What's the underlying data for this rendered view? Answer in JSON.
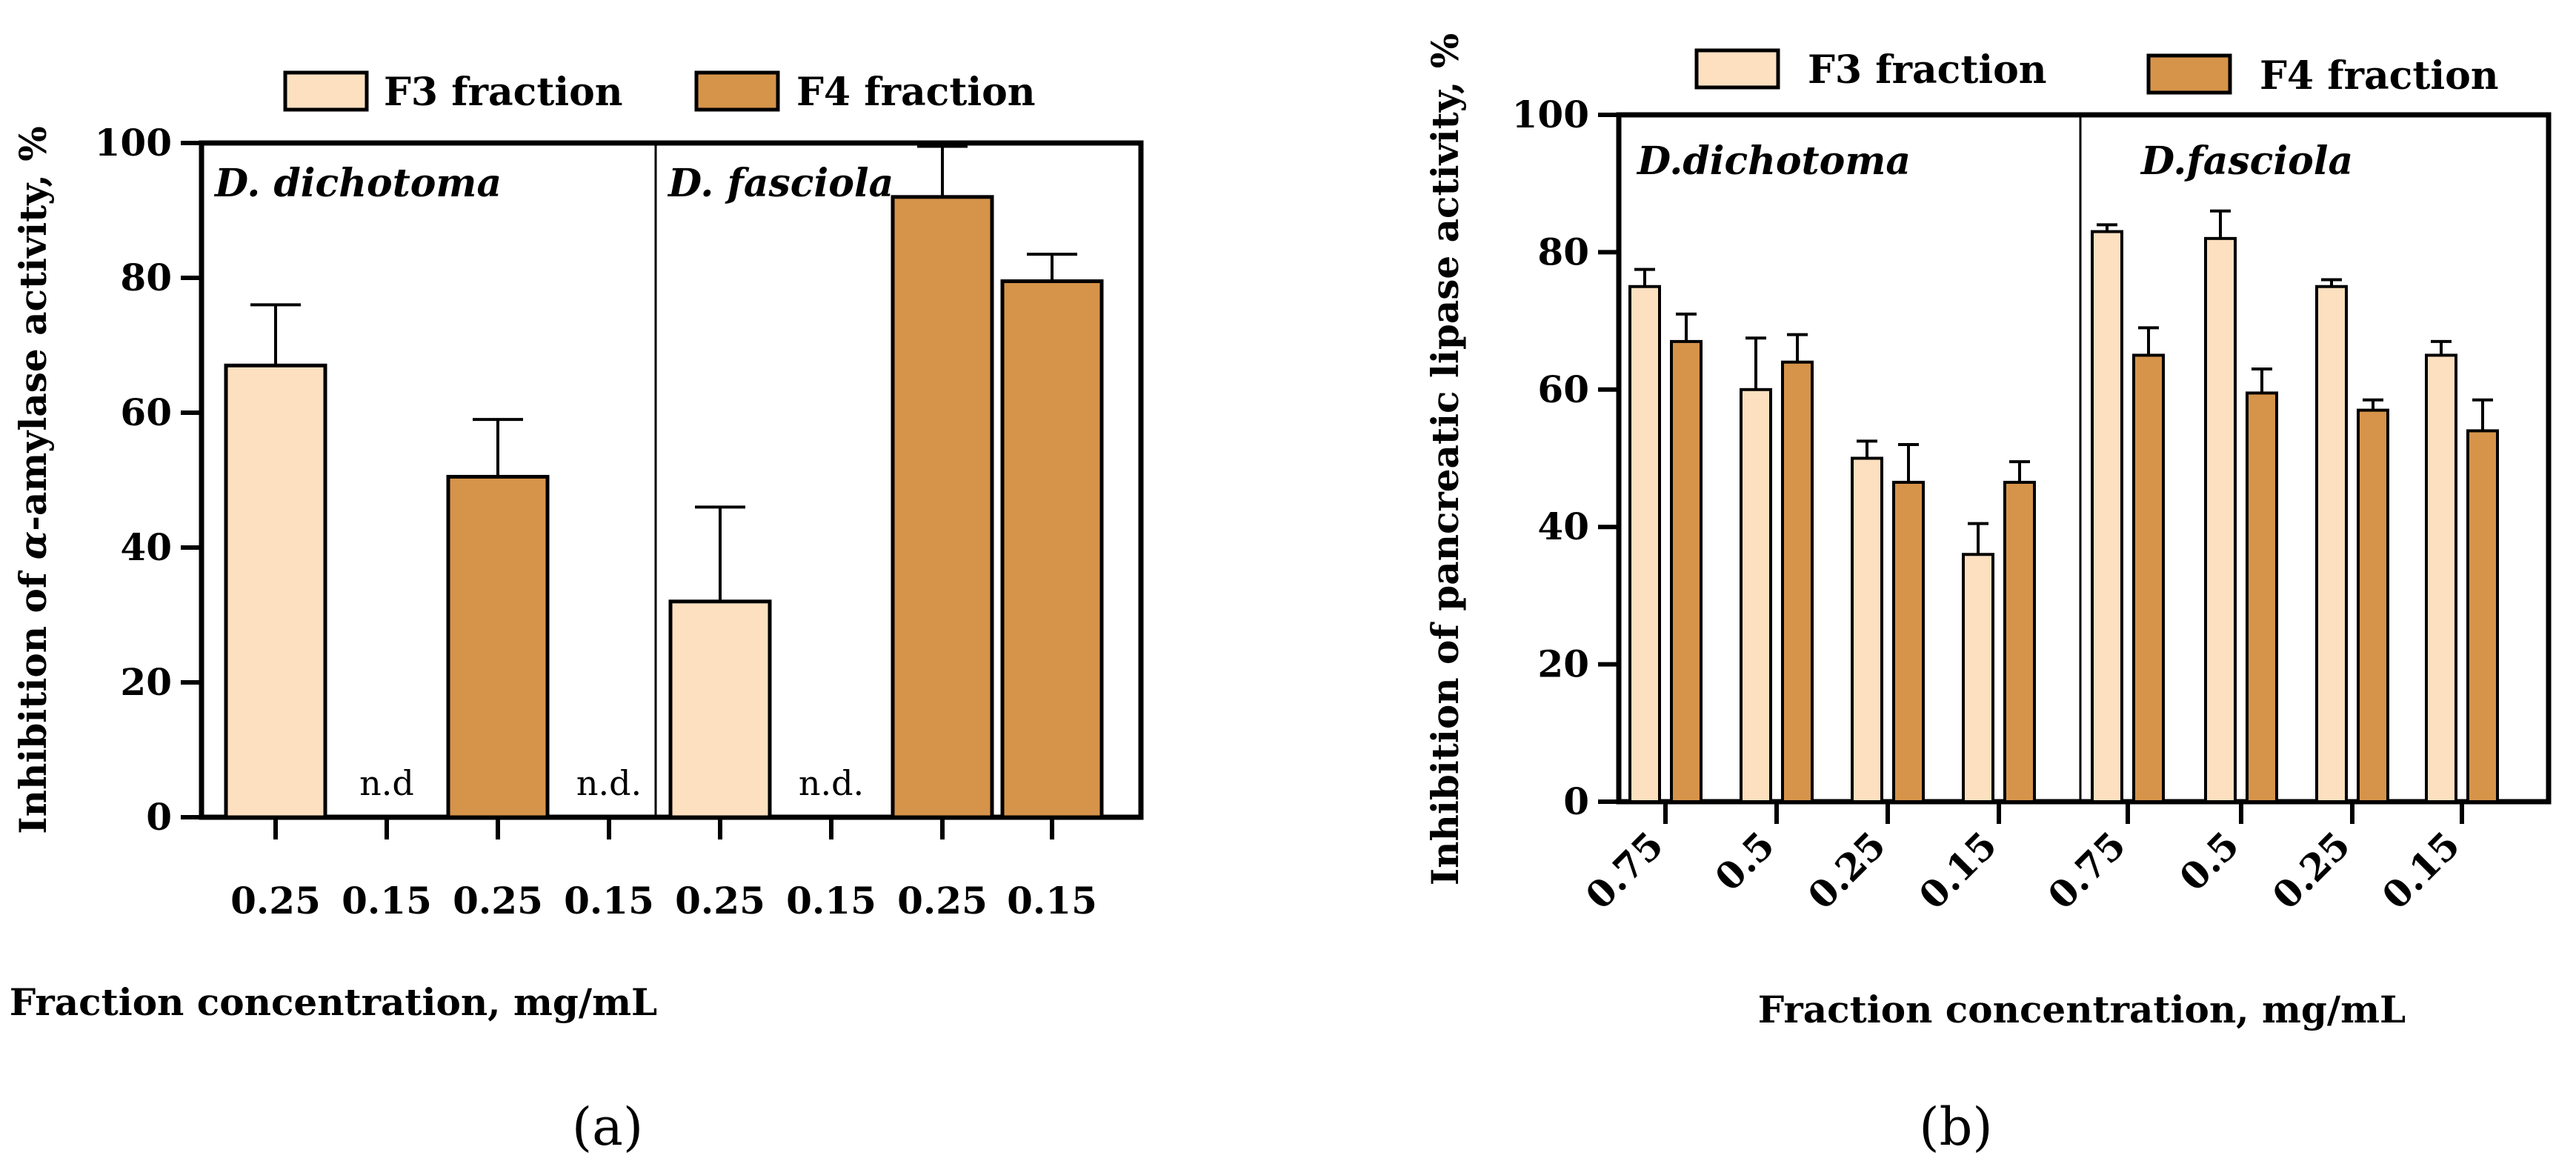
{
  "colors": {
    "f3": "#FDE0BF",
    "f4": "#D6944A",
    "stroke": "#000000"
  },
  "chart_data": [
    {
      "panel": "(a)",
      "type": "bar",
      "xlabel": "Fraction concentration, mg/mL",
      "ylabel_prefix": "Inhibition of ",
      "ylabel_greek": "α",
      "ylabel_suffix": "-amylase activity, %",
      "ylim": [
        0,
        100
      ],
      "yticks": [
        0,
        20,
        40,
        60,
        80,
        100
      ],
      "legend": [
        "F3 fraction",
        "F4 fraction"
      ],
      "groups": [
        "D. dichotoma",
        "D. fasciola"
      ],
      "categories": [
        "0.25",
        "0.15",
        "0.25",
        "0.15",
        "0.25",
        "0.15",
        "0.25",
        "0.15"
      ],
      "bars": [
        {
          "series": "F3 fraction",
          "value": 67,
          "error": 9
        },
        {
          "series": "F3 fraction",
          "value": 0,
          "label": "n.d"
        },
        {
          "series": "F4 fraction",
          "value": 50.5,
          "error": 8.5
        },
        {
          "series": "F4 fraction",
          "value": 0,
          "label": "n.d."
        },
        {
          "series": "F3 fraction",
          "value": 32,
          "error": 14
        },
        {
          "series": "F3 fraction",
          "value": 0,
          "label": "n.d."
        },
        {
          "series": "F4 fraction",
          "value": 92,
          "error": 7.5
        },
        {
          "series": "F4 fraction",
          "value": 79.5,
          "error": 4
        }
      ]
    },
    {
      "panel": "(b)",
      "type": "bar",
      "xlabel": "Fraction concentration, mg/mL",
      "ylabel": "Inhibition of pancreatic lipase activity, %",
      "ylim": [
        0,
        100
      ],
      "yticks": [
        0,
        20,
        40,
        60,
        80,
        100
      ],
      "legend": [
        "F3 fraction",
        "F4 fraction"
      ],
      "groups": [
        "D.dichotoma",
        "D.fasciola"
      ],
      "categories": [
        "0.75",
        "0.5",
        "0.25",
        "0.15",
        "0.75",
        "0.5",
        "0.25",
        "0.15"
      ],
      "series": [
        {
          "name": "F3 fraction",
          "values": [
            75,
            60,
            50,
            36,
            83,
            82,
            75,
            65
          ],
          "errors": [
            2.5,
            7.5,
            2.5,
            4.5,
            1,
            4,
            1,
            2
          ]
        },
        {
          "name": "F4 fraction",
          "values": [
            67,
            64,
            46.5,
            46.5,
            65,
            59.5,
            57,
            54
          ],
          "errors": [
            4,
            4,
            5.5,
            3,
            4,
            3.5,
            1.5,
            4.5
          ]
        }
      ]
    }
  ]
}
